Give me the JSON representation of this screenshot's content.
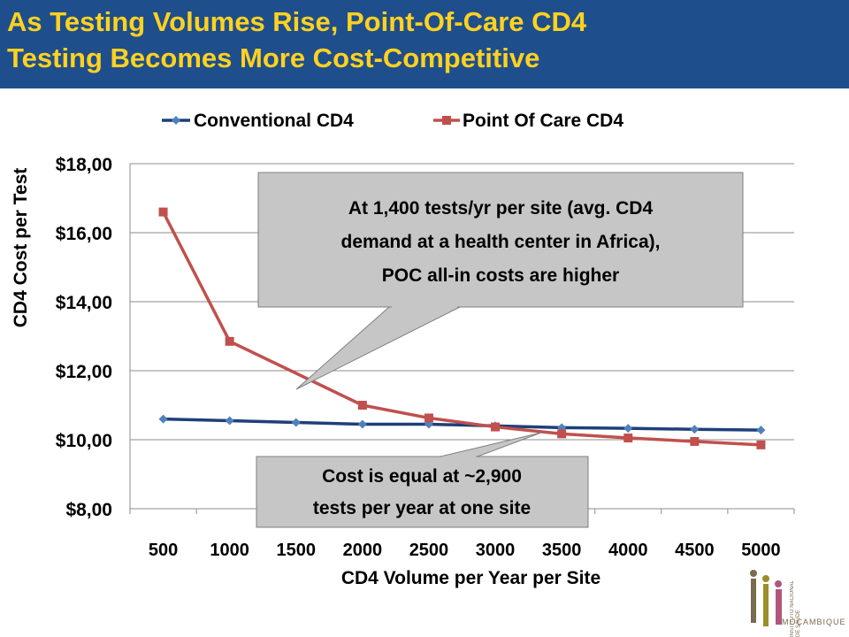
{
  "slide": {
    "title": "As Testing Volumes Rise, Point-Of-Care CD4\nTesting Becomes More Cost-Competitive",
    "logo_text": "INSTITUTO NACIONAL DE SAÚDE",
    "logo_country": "MOÇAMBIQUE"
  },
  "colors": {
    "title_bg": "#1f4e8c",
    "title_text": "#ffd21f",
    "conventional": "#1f3f7a",
    "poc": "#c0504d"
  },
  "callouts": {
    "upper": "At 1,400 tests/yr per site (avg. CD4 demand at a health center in Africa), POC all-in costs are higher",
    "lower": "Cost is equal at ~2,900 tests per year at one site"
  },
  "chart_data": {
    "type": "line",
    "categories": [
      "500",
      "1000",
      "1500",
      "2000",
      "2500",
      "3000",
      "3500",
      "4000",
      "4500",
      "5000"
    ],
    "series": [
      {
        "name": "Conventional CD4",
        "values": [
          10.6,
          10.55,
          10.5,
          10.45,
          10.45,
          10.4,
          10.35,
          10.33,
          10.3,
          10.28
        ],
        "marker": "diamond"
      },
      {
        "name": "Point Of Care CD4",
        "values": [
          16.6,
          12.85,
          null,
          11.0,
          10.63,
          10.37,
          10.17,
          10.05,
          9.95,
          9.85
        ],
        "marker": "square"
      }
    ],
    "xlabel": "CD4 Volume per Year per Site",
    "ylabel": "CD4 Cost per Test",
    "yticks": [
      "$18,00",
      "$16,00",
      "$14,00",
      "$12,00",
      "$10,00",
      "$8,00"
    ],
    "ylim": [
      8,
      18
    ],
    "grid": true,
    "legend": "top"
  }
}
